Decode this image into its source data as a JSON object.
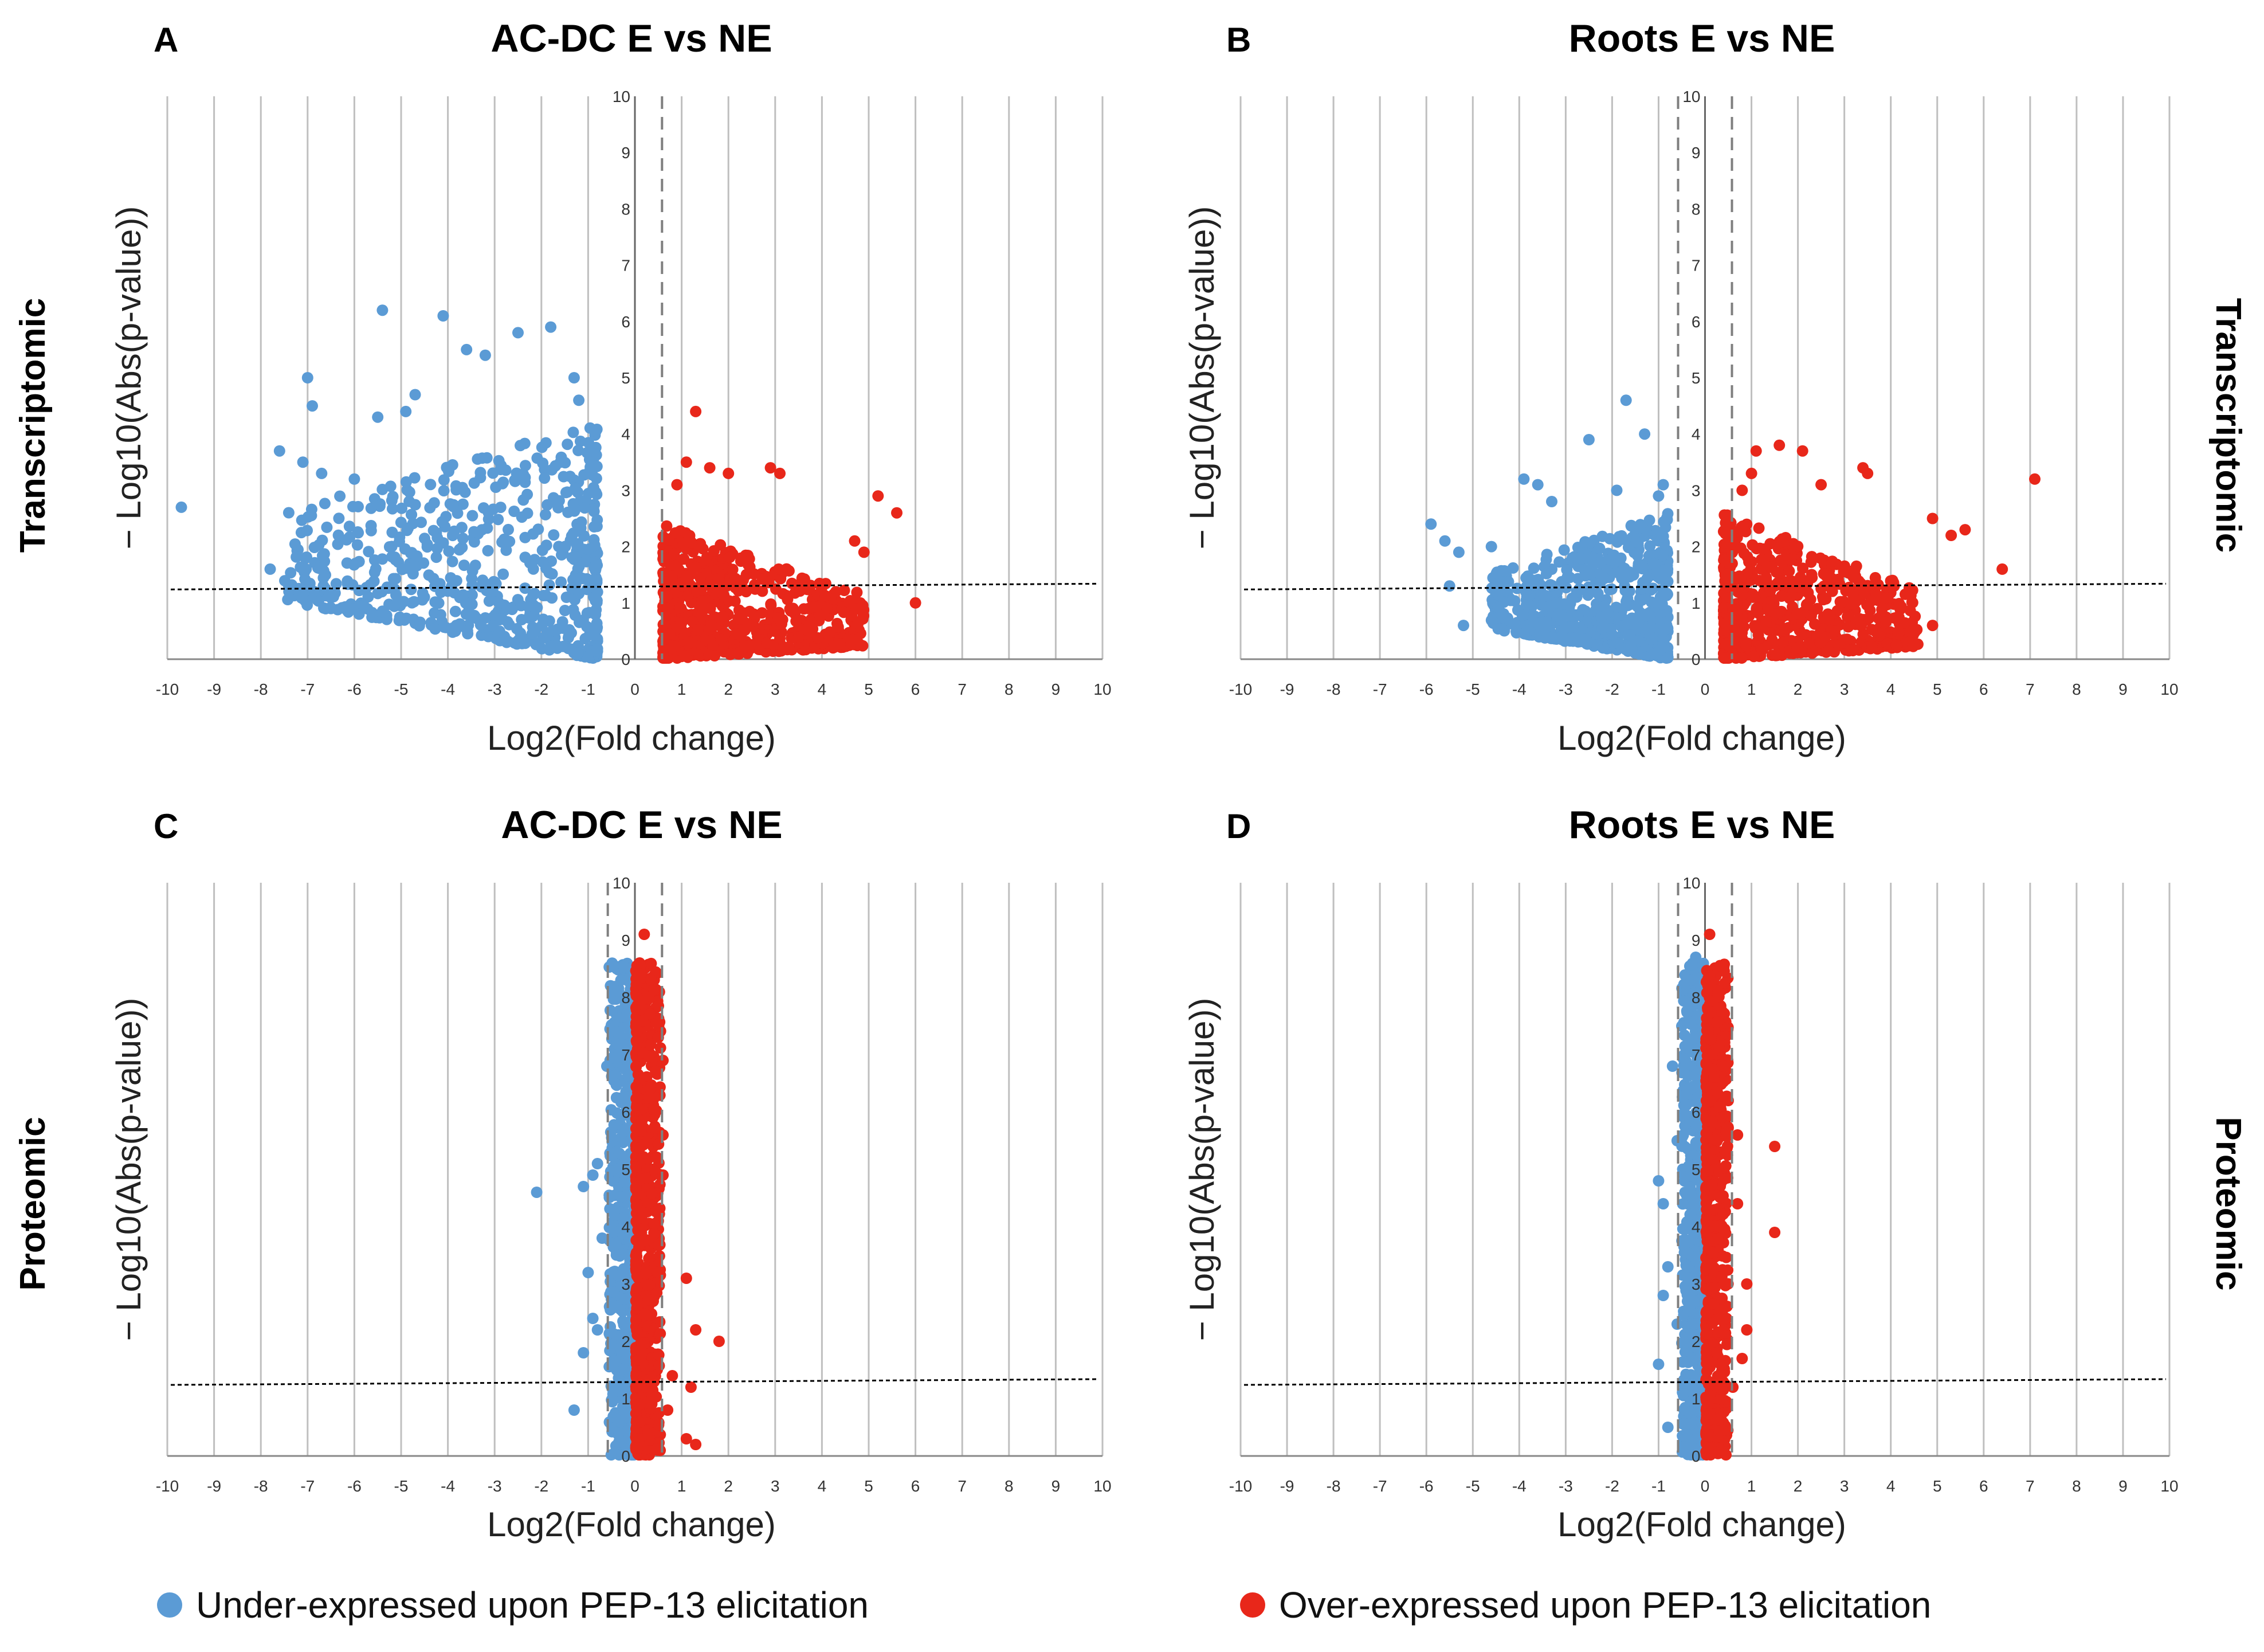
{
  "colors": {
    "under": "#5B9BD5",
    "over": "#E8271A",
    "grid": "#BFBFBF",
    "threshold": "#000000",
    "fc_cutoff": "#7F7F7F"
  },
  "row_labels": {
    "top": "Transcriptomic",
    "bottom": "Proteomic"
  },
  "legend": {
    "under_label": "Under-expressed upon PEP-13 elicitation",
    "over_label": "Over-expressed upon PEP-13 elicitation"
  },
  "chart_data": [
    {
      "type": "scatter",
      "panel": "A",
      "title": "AC-DC E vs NE",
      "xlabel": "Log2(Fold change)",
      "ylabel": "− Log10(Abs(p-value))",
      "xlim": [
        -10,
        10
      ],
      "ylim": [
        0,
        10
      ],
      "x_ticks": [
        "-10",
        "-9",
        "-8",
        "-7",
        "-6",
        "-5",
        "-4",
        "-3",
        "-2",
        "-1",
        "0",
        "1",
        "2",
        "3",
        "4",
        "5",
        "6",
        "7",
        "8",
        "9",
        "10"
      ],
      "y_ticks": [
        "0",
        "1",
        "2",
        "3",
        "4",
        "5",
        "6",
        "7",
        "8",
        "9",
        "10"
      ],
      "threshold_y": 1.3,
      "fc_cutoffs": [
        0.58
      ],
      "series": [
        {
          "name": "Under-expressed",
          "side": "neg",
          "dense_x": [
            -7.5,
            -0.8
          ],
          "max_y": 4.2,
          "drift": 0.14,
          "points": [
            [
              -9.7,
              2.7
            ],
            [
              -5.4,
              6.2
            ],
            [
              -4.1,
              6.1
            ],
            [
              -3.6,
              5.5
            ],
            [
              -3.2,
              5.4
            ],
            [
              -2.5,
              5.8
            ],
            [
              -1.8,
              5.9
            ],
            [
              -1.3,
              5.0
            ],
            [
              -1.2,
              4.6
            ],
            [
              -7.0,
              5.0
            ],
            [
              -6.9,
              4.5
            ],
            [
              -7.6,
              3.7
            ],
            [
              -7.1,
              3.5
            ],
            [
              -6.7,
              3.3
            ],
            [
              -7.8,
              1.6
            ],
            [
              -7.4,
              1.2
            ],
            [
              -6.5,
              0.9
            ],
            [
              -5.9,
              0.8
            ],
            [
              -4.9,
              4.4
            ],
            [
              -5.5,
              4.3
            ],
            [
              -4.7,
              4.7
            ],
            [
              -6.0,
              3.2
            ]
          ]
        },
        {
          "name": "Over-expressed",
          "side": "pos",
          "dense_x": [
            0.6,
            4.9
          ],
          "max_y": 2.4,
          "drift": 0.05,
          "points": [
            [
              1.3,
              4.4
            ],
            [
              1.1,
              3.5
            ],
            [
              1.6,
              3.4
            ],
            [
              2.0,
              3.3
            ],
            [
              2.9,
              3.4
            ],
            [
              3.1,
              3.3
            ],
            [
              5.2,
              2.9
            ],
            [
              5.6,
              2.6
            ],
            [
              6.0,
              1.0
            ],
            [
              4.7,
              2.1
            ],
            [
              4.9,
              1.9
            ],
            [
              0.9,
              3.1
            ]
          ]
        }
      ]
    },
    {
      "type": "scatter",
      "panel": "B",
      "title": "Roots E vs NE",
      "xlabel": "Log2(Fold change)",
      "ylabel": "− Log10(Abs(p-value))",
      "xlim": [
        -10,
        10
      ],
      "ylim": [
        0,
        10
      ],
      "x_ticks": [
        "-10",
        "-9",
        "-8",
        "-7",
        "-6",
        "-5",
        "-4",
        "-3",
        "-2",
        "-1",
        "0",
        "1",
        "2",
        "3",
        "4",
        "5",
        "6",
        "7",
        "8",
        "9",
        "10"
      ],
      "y_ticks": [
        "0",
        "1",
        "2",
        "3",
        "4",
        "5",
        "6",
        "7",
        "8",
        "9",
        "10"
      ],
      "threshold_y": 1.3,
      "fc_cutoffs": [
        -0.58,
        0.58
      ],
      "series": [
        {
          "name": "Under-expressed",
          "side": "neg",
          "dense_x": [
            -4.6,
            -0.8
          ],
          "max_y": 2.6,
          "drift": 0.13,
          "points": [
            [
              -1.7,
              4.6
            ],
            [
              -1.3,
              4.0
            ],
            [
              -2.5,
              3.9
            ],
            [
              -3.9,
              3.2
            ],
            [
              -3.6,
              3.1
            ],
            [
              -0.9,
              3.1
            ],
            [
              -1.0,
              2.9
            ],
            [
              -1.9,
              3.0
            ],
            [
              -5.9,
              2.4
            ],
            [
              -5.6,
              2.1
            ],
            [
              -5.3,
              1.9
            ],
            [
              -4.6,
              2.0
            ],
            [
              -5.5,
              1.3
            ],
            [
              -5.2,
              0.6
            ],
            [
              -3.3,
              2.8
            ]
          ]
        },
        {
          "name": "Over-expressed",
          "side": "pos",
          "dense_x": [
            0.4,
            4.6
          ],
          "max_y": 2.6,
          "drift": 0.05,
          "points": [
            [
              7.1,
              3.2
            ],
            [
              6.4,
              1.6
            ],
            [
              4.9,
              0.6
            ],
            [
              1.6,
              3.8
            ],
            [
              2.1,
              3.7
            ],
            [
              1.1,
              3.7
            ],
            [
              3.4,
              3.4
            ],
            [
              3.5,
              3.3
            ],
            [
              1.0,
              3.3
            ],
            [
              5.6,
              2.3
            ],
            [
              5.3,
              2.2
            ],
            [
              4.9,
              2.5
            ],
            [
              2.5,
              3.1
            ],
            [
              0.8,
              3.0
            ]
          ]
        }
      ]
    },
    {
      "type": "scatter",
      "panel": "C",
      "title": "AC-DC E vs NE",
      "xlabel": "Log2(Fold change)",
      "ylabel": "− Log10(Abs(p-value))",
      "xlim": [
        -10,
        10
      ],
      "ylim": [
        0,
        10
      ],
      "x_ticks": [
        "-10",
        "-9",
        "-8",
        "-7",
        "-6",
        "-5",
        "-4",
        "-3",
        "-2",
        "-1",
        "0",
        "1",
        "2",
        "3",
        "4",
        "5",
        "6",
        "7",
        "8",
        "9",
        "10"
      ],
      "y_ticks": [
        "0",
        "1",
        "2",
        "3",
        "4",
        "5",
        "6",
        "7",
        "8",
        "9",
        "10"
      ],
      "threshold_y": 1.3,
      "fc_cutoffs": [
        -0.58,
        0.58
      ],
      "series": [
        {
          "name": "Under-expressed",
          "side": "neg",
          "dense_x": [
            -0.55,
            -0.02
          ],
          "max_y": 8.6,
          "drift": 0,
          "points": [
            [
              -2.1,
              4.6
            ],
            [
              -1.1,
              4.7
            ],
            [
              -0.9,
              4.9
            ],
            [
              -0.8,
              5.1
            ],
            [
              -1.0,
              3.2
            ],
            [
              -0.9,
              2.4
            ],
            [
              -1.1,
              1.8
            ],
            [
              -1.3,
              0.8
            ],
            [
              -0.8,
              2.2
            ],
            [
              -0.7,
              3.8
            ],
            [
              -0.6,
              6.8
            ],
            [
              -0.4,
              7.4
            ],
            [
              -0.3,
              8.3
            ],
            [
              -0.1,
              8.5
            ]
          ]
        },
        {
          "name": "Over-expressed",
          "side": "pos",
          "dense_x": [
            0.02,
            0.55
          ],
          "max_y": 8.6,
          "drift": 0,
          "points": [
            [
              0.2,
              9.1
            ],
            [
              0.1,
              8.6
            ],
            [
              0.5,
              7.3
            ],
            [
              0.6,
              6.9
            ],
            [
              0.6,
              5.6
            ],
            [
              0.6,
              4.9
            ],
            [
              1.1,
              3.1
            ],
            [
              1.8,
              2.0
            ],
            [
              1.3,
              2.2
            ],
            [
              0.8,
              1.4
            ],
            [
              1.2,
              1.2
            ],
            [
              1.1,
              0.3
            ],
            [
              1.3,
              0.2
            ],
            [
              0.7,
              0.8
            ]
          ]
        }
      ]
    },
    {
      "type": "scatter",
      "panel": "D",
      "title": "Roots E vs NE",
      "xlabel": "Log2(Fold change)",
      "ylabel": "− Log10(Abs(p-value))",
      "xlim": [
        -10,
        10
      ],
      "ylim": [
        0,
        10
      ],
      "x_ticks": [
        "-10",
        "-9",
        "-8",
        "-7",
        "-6",
        "-5",
        "-4",
        "-3",
        "-2",
        "-1",
        "0",
        "1",
        "2",
        "3",
        "4",
        "5",
        "6",
        "7",
        "8",
        "9",
        "10"
      ],
      "y_ticks": [
        "0",
        "1",
        "2",
        "3",
        "4",
        "5",
        "6",
        "7",
        "8",
        "9",
        "10"
      ],
      "threshold_y": 1.3,
      "fc_cutoffs": [
        -0.58,
        0.58
      ],
      "series": [
        {
          "name": "Under-expressed",
          "side": "neg",
          "dense_x": [
            -0.5,
            -0.02
          ],
          "max_y": 8.6,
          "drift": 0,
          "points": [
            [
              -1.0,
              4.8
            ],
            [
              -0.9,
              4.4
            ],
            [
              -0.8,
              3.3
            ],
            [
              -0.7,
              6.8
            ],
            [
              -0.6,
              5.5
            ],
            [
              -0.5,
              7.5
            ],
            [
              -0.3,
              8.3
            ],
            [
              -0.2,
              8.7
            ],
            [
              -1.0,
              1.6
            ],
            [
              -0.8,
              0.5
            ],
            [
              -0.6,
              2.3
            ],
            [
              -0.9,
              2.8
            ]
          ]
        },
        {
          "name": "Over-expressed",
          "side": "pos",
          "dense_x": [
            0.02,
            0.5
          ],
          "max_y": 8.6,
          "drift": 0,
          "points": [
            [
              0.1,
              9.1
            ],
            [
              1.5,
              5.4
            ],
            [
              0.7,
              5.6
            ],
            [
              1.5,
              3.9
            ],
            [
              0.9,
              3.0
            ],
            [
              0.9,
              2.2
            ],
            [
              0.8,
              1.7
            ],
            [
              0.6,
              1.2
            ],
            [
              0.4,
              6.8
            ],
            [
              0.5,
              6.2
            ],
            [
              0.7,
              4.4
            ]
          ]
        }
      ]
    }
  ]
}
